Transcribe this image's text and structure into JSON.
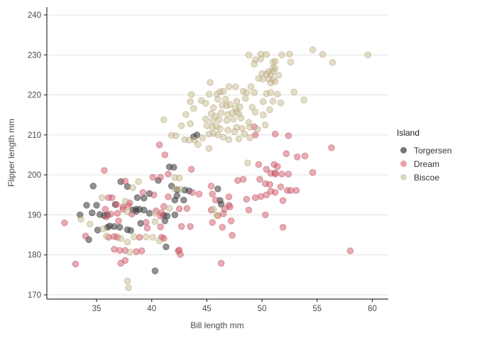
{
  "chart_data": {
    "type": "scatter",
    "title": "",
    "xlabel": "Bill length mm",
    "ylabel": "Flipper length mm",
    "xlim": [
      30.5,
      61.5
    ],
    "ylim": [
      168,
      242
    ],
    "xticks": [
      35,
      40,
      45,
      50,
      55,
      60
    ],
    "yticks": [
      170,
      180,
      190,
      200,
      210,
      220,
      230,
      240
    ],
    "grid": "horizontal-major-only",
    "axis_color": "#333333",
    "grid_color": "#e0e0e0",
    "tick_label_color": "#4a4a4a",
    "legend": {
      "title": "Island",
      "position": "right"
    },
    "series": [
      {
        "name": "Torgersen",
        "key_color": "#767676",
        "fill": "rgba(77,77,77,0.62)",
        "stroke": "rgba(45,45,45,0.45)",
        "points": [
          [
            33.5,
            190
          ],
          [
            34.1,
            192.4
          ],
          [
            34.3,
            183.8
          ],
          [
            34.6,
            190.5
          ],
          [
            34.7,
            197.2
          ],
          [
            35.0,
            192.4
          ],
          [
            35.1,
            186.2
          ],
          [
            35.3,
            190.1
          ],
          [
            35.7,
            189.8
          ],
          [
            36.0,
            190.0
          ],
          [
            36.0,
            186.9
          ],
          [
            36.2,
            187.2
          ],
          [
            36.6,
            187.1
          ],
          [
            36.7,
            192.6
          ],
          [
            37.1,
            186.9
          ],
          [
            37.2,
            198.3
          ],
          [
            37.8,
            197.1
          ],
          [
            37.8,
            186.3
          ],
          [
            38.1,
            186.1
          ],
          [
            38.3,
            191.2
          ],
          [
            38.6,
            191.4
          ],
          [
            38.6,
            190.9
          ],
          [
            38.7,
            194.3
          ],
          [
            38.9,
            191.4
          ],
          [
            39.0,
            187.9
          ],
          [
            39.3,
            194.2
          ],
          [
            39.3,
            191.2
          ],
          [
            39.8,
            195.3
          ],
          [
            39.8,
            190.4
          ],
          [
            40.3,
            176.0
          ],
          [
            40.6,
            198.6
          ],
          [
            41.1,
            189.9
          ],
          [
            41.4,
            189.7
          ],
          [
            41.2,
            188.5
          ],
          [
            41.3,
            182.0
          ],
          [
            41.6,
            202.0
          ],
          [
            41.8,
            197.2
          ],
          [
            42.0,
            201.9
          ],
          [
            42.1,
            190.0
          ],
          [
            42.1,
            193.7
          ],
          [
            42.3,
            194.8
          ],
          [
            42.3,
            196.3
          ],
          [
            42.9,
            193.7
          ],
          [
            43.0,
            196.2
          ],
          [
            43.4,
            196.0
          ],
          [
            43.8,
            209.5
          ],
          [
            44.1,
            210.0
          ],
          [
            46.0,
            196.5
          ],
          [
            46.2,
            193.6
          ],
          [
            46.3,
            192.7
          ]
        ]
      },
      {
        "name": "Dream",
        "key_color": "#e8a0a9",
        "fill": "rgba(214,96,112,0.52)",
        "stroke": "rgba(176,66,82,0.45)",
        "points": [
          [
            32.1,
            188
          ],
          [
            33.1,
            177.7
          ],
          [
            34.0,
            184.7
          ],
          [
            35.7,
            201.1
          ],
          [
            35.8,
            191.4
          ],
          [
            35.9,
            189.5
          ],
          [
            36.1,
            194.3
          ],
          [
            36.1,
            184.4
          ],
          [
            36.3,
            190.2
          ],
          [
            36.4,
            194.3
          ],
          [
            36.6,
            184.6
          ],
          [
            36.6,
            181.4
          ],
          [
            36.8,
            192.6
          ],
          [
            36.9,
            190.4
          ],
          [
            36.9,
            184.4
          ],
          [
            37.0,
            188.5
          ],
          [
            37.1,
            181.1
          ],
          [
            37.2,
            177.9
          ],
          [
            37.4,
            192.0
          ],
          [
            37.4,
            191.4
          ],
          [
            37.6,
            198.4
          ],
          [
            37.6,
            181.1
          ],
          [
            37.6,
            178.6
          ],
          [
            37.9,
            192.4
          ],
          [
            38.0,
            193.0
          ],
          [
            38.2,
            190.2
          ],
          [
            38.6,
            180.8
          ],
          [
            38.9,
            184.4
          ],
          [
            39.1,
            181.0
          ],
          [
            39.2,
            195.6
          ],
          [
            39.5,
            188.1
          ],
          [
            39.6,
            186.7
          ],
          [
            40.1,
            199.4
          ],
          [
            40.2,
            195.0
          ],
          [
            40.4,
            191.0
          ],
          [
            40.7,
            207.5
          ],
          [
            40.8,
            199.4
          ],
          [
            40.8,
            189.7
          ],
          [
            40.8,
            187.0
          ],
          [
            40.9,
            190.5
          ],
          [
            40.9,
            184.4
          ],
          [
            41.1,
            184.1
          ],
          [
            41.1,
            192.1
          ],
          [
            41.2,
            205.0
          ],
          [
            41.5,
            200.2
          ],
          [
            41.5,
            194.5
          ],
          [
            42.4,
            181.0
          ],
          [
            42.5,
            191.5
          ],
          [
            42.5,
            181.2
          ],
          [
            42.6,
            180.1
          ],
          [
            42.7,
            187.1
          ],
          [
            43.2,
            191.6
          ],
          [
            43.5,
            187.1
          ],
          [
            43.6,
            201.4
          ],
          [
            43.7,
            195.6
          ],
          [
            44.3,
            195.2
          ],
          [
            45.4,
            197.2
          ],
          [
            45.4,
            191.2
          ],
          [
            45.5,
            195.2
          ],
          [
            45.5,
            188.1
          ],
          [
            45.8,
            193.7
          ],
          [
            46.0,
            189.8
          ],
          [
            46.3,
            177.9
          ],
          [
            46.4,
            186.9
          ],
          [
            46.5,
            190.3
          ],
          [
            46.6,
            191.5
          ],
          [
            47.0,
            194.5
          ],
          [
            47.0,
            192.4
          ],
          [
            47.1,
            192.0
          ],
          [
            47.2,
            188.5
          ],
          [
            47.3,
            184.9
          ],
          [
            47.8,
            198.6
          ],
          [
            48.3,
            198.9
          ],
          [
            48.6,
            193.9
          ],
          [
            48.8,
            191.2
          ],
          [
            49.3,
            212.0
          ],
          [
            49.4,
            210.0
          ],
          [
            49.4,
            194.3
          ],
          [
            49.7,
            202.6
          ],
          [
            49.8,
            198.9
          ],
          [
            49.9,
            194.6
          ],
          [
            50.3,
            197.8
          ],
          [
            50.3,
            190.0
          ],
          [
            50.4,
            201.4
          ],
          [
            50.4,
            195.0
          ],
          [
            50.7,
            197.6
          ],
          [
            50.8,
            200.4
          ],
          [
            50.8,
            195.9
          ],
          [
            51.1,
            202.6
          ],
          [
            51.2,
            210.2
          ],
          [
            51.2,
            200.5
          ],
          [
            51.2,
            200.2
          ],
          [
            51.2,
            195.6
          ],
          [
            51.4,
            202.1
          ],
          [
            51.7,
            197.0
          ],
          [
            51.8,
            200.2
          ],
          [
            51.9,
            193.6
          ],
          [
            51.9,
            186.9
          ],
          [
            52.2,
            205.3
          ],
          [
            52.3,
            196.1
          ],
          [
            52.4,
            209.8
          ],
          [
            52.4,
            200.2
          ],
          [
            52.6,
            196.1
          ],
          [
            53.1,
            196.1
          ],
          [
            53.2,
            204.5
          ],
          [
            53.9,
            204.7
          ],
          [
            54.6,
            200.6
          ],
          [
            56.3,
            206.8
          ],
          [
            58.0,
            181.0
          ]
        ]
      },
      {
        "name": "Biscoe",
        "key_color": "#ddd6c1",
        "fill": "rgba(202,188,146,0.5)",
        "stroke": "rgba(166,150,104,0.45)",
        "points": [
          [
            48.8,
            230.0
          ],
          [
            49.9,
            230.2
          ],
          [
            50.4,
            230.1
          ],
          [
            51.8,
            230.0
          ],
          [
            52.5,
            230.2
          ],
          [
            54.6,
            231.3
          ],
          [
            55.5,
            230.1
          ],
          [
            59.6,
            230.0
          ],
          [
            49.4,
            228.8
          ],
          [
            49.9,
            229.0
          ],
          [
            51.0,
            228.2
          ],
          [
            51.2,
            228.4
          ],
          [
            52.6,
            228.2
          ],
          [
            56.4,
            228.1
          ],
          [
            49.3,
            227.7
          ],
          [
            51.0,
            226.7
          ],
          [
            51.2,
            226.6
          ],
          [
            50.6,
            225.8
          ],
          [
            51.0,
            225.8
          ],
          [
            50.0,
            225.3
          ],
          [
            50.4,
            225.2
          ],
          [
            50.8,
            225.1
          ],
          [
            51.5,
            224.9
          ],
          [
            49.7,
            224.1
          ],
          [
            50.1,
            224.0
          ],
          [
            50.6,
            224.0
          ],
          [
            51.0,
            223.8
          ],
          [
            45.3,
            223.1
          ],
          [
            50.8,
            223.0
          ],
          [
            51.2,
            223.3
          ],
          [
            47.0,
            222.1
          ],
          [
            47.6,
            222.0
          ],
          [
            49.0,
            222.1
          ],
          [
            48.3,
            220.9
          ],
          [
            49.3,
            220.6
          ],
          [
            48.6,
            220.6
          ],
          [
            46.2,
            220.8
          ],
          [
            46.5,
            220.9
          ],
          [
            43.6,
            220.1
          ],
          [
            45.2,
            220.2
          ],
          [
            45.9,
            220.2
          ],
          [
            50.4,
            220.3
          ],
          [
            50.8,
            220.6
          ],
          [
            51.4,
            220.2
          ],
          [
            52.9,
            220.7
          ],
          [
            43.5,
            218.3
          ],
          [
            44.5,
            218.6
          ],
          [
            46.0,
            218.9
          ],
          [
            46.7,
            218.9
          ],
          [
            47.7,
            218.4
          ],
          [
            48.5,
            219.1
          ],
          [
            53.8,
            218.7
          ],
          [
            51.7,
            218.0
          ],
          [
            46.4,
            217.4
          ],
          [
            46.8,
            217.3
          ],
          [
            47.6,
            216.7
          ],
          [
            43.8,
            216.6
          ],
          [
            50.1,
            218.3
          ],
          [
            51.0,
            218.4
          ],
          [
            44.9,
            217.9
          ],
          [
            45.6,
            216.8
          ],
          [
            47.1,
            217.6
          ],
          [
            48.0,
            217.0
          ],
          [
            49.1,
            216.9
          ],
          [
            50.7,
            216.3
          ],
          [
            41.1,
            213.8
          ],
          [
            43.1,
            215.1
          ],
          [
            45.4,
            215.3
          ],
          [
            45.8,
            214.7
          ],
          [
            46.3,
            215.5
          ],
          [
            46.9,
            215.1
          ],
          [
            47.3,
            215.5
          ],
          [
            47.7,
            215.7
          ],
          [
            47.9,
            215.3
          ],
          [
            49.4,
            215.7
          ],
          [
            50.1,
            215.0
          ],
          [
            44.9,
            214.0
          ],
          [
            45.5,
            213.5
          ],
          [
            46.1,
            213.8
          ],
          [
            46.8,
            213.6
          ],
          [
            47.4,
            213.9
          ],
          [
            48.1,
            214.2
          ],
          [
            48.8,
            213.1
          ],
          [
            42.7,
            212.3
          ],
          [
            43.5,
            212.8
          ],
          [
            45.0,
            212.3
          ],
          [
            45.5,
            211.9
          ],
          [
            45.9,
            212.1
          ],
          [
            47.7,
            211.9
          ],
          [
            50.3,
            212.5
          ],
          [
            46.2,
            211.5
          ],
          [
            46.9,
            211.2
          ],
          [
            47.5,
            210.8
          ],
          [
            48.2,
            211.6
          ],
          [
            48.9,
            211.9
          ],
          [
            49.6,
            211.4
          ],
          [
            41.8,
            209.9
          ],
          [
            42.2,
            209.8
          ],
          [
            43.0,
            208.8
          ],
          [
            43.4,
            208.7
          ],
          [
            43.9,
            208.7
          ],
          [
            44.2,
            207.6
          ],
          [
            44.6,
            209.2
          ],
          [
            45.2,
            210.2
          ],
          [
            45.6,
            210.4
          ],
          [
            46.0,
            210.0
          ],
          [
            46.5,
            209.4
          ],
          [
            47.0,
            208.8
          ],
          [
            47.9,
            209.0
          ],
          [
            48.4,
            210.2
          ],
          [
            48.9,
            209.3
          ],
          [
            45.2,
            206.6
          ],
          [
            48.7,
            203.0
          ],
          [
            33.6,
            188.9
          ],
          [
            34.4,
            187.7
          ],
          [
            35.5,
            194.3
          ],
          [
            35.6,
            186.5
          ],
          [
            35.9,
            184.7
          ],
          [
            37.2,
            184.1
          ],
          [
            37.6,
            193.4
          ],
          [
            37.8,
            173.5
          ],
          [
            37.9,
            171.8
          ],
          [
            37.8,
            190.8
          ],
          [
            37.8,
            183.2
          ],
          [
            38.0,
            180.7
          ],
          [
            38.3,
            196.8
          ],
          [
            38.4,
            184.5
          ],
          [
            38.8,
            198.3
          ],
          [
            39.5,
            184.5
          ],
          [
            40.1,
            184.4
          ],
          [
            40.3,
            190.4
          ],
          [
            40.3,
            188.3
          ],
          [
            40.7,
            183.5
          ],
          [
            41.6,
            191.6
          ],
          [
            42.1,
            199.3
          ],
          [
            42.1,
            196.5
          ],
          [
            42.5,
            199.2
          ],
          [
            42.6,
            196.4
          ],
          [
            45.6,
            191.4
          ],
          [
            45.9,
            189.9
          ]
        ]
      }
    ]
  }
}
